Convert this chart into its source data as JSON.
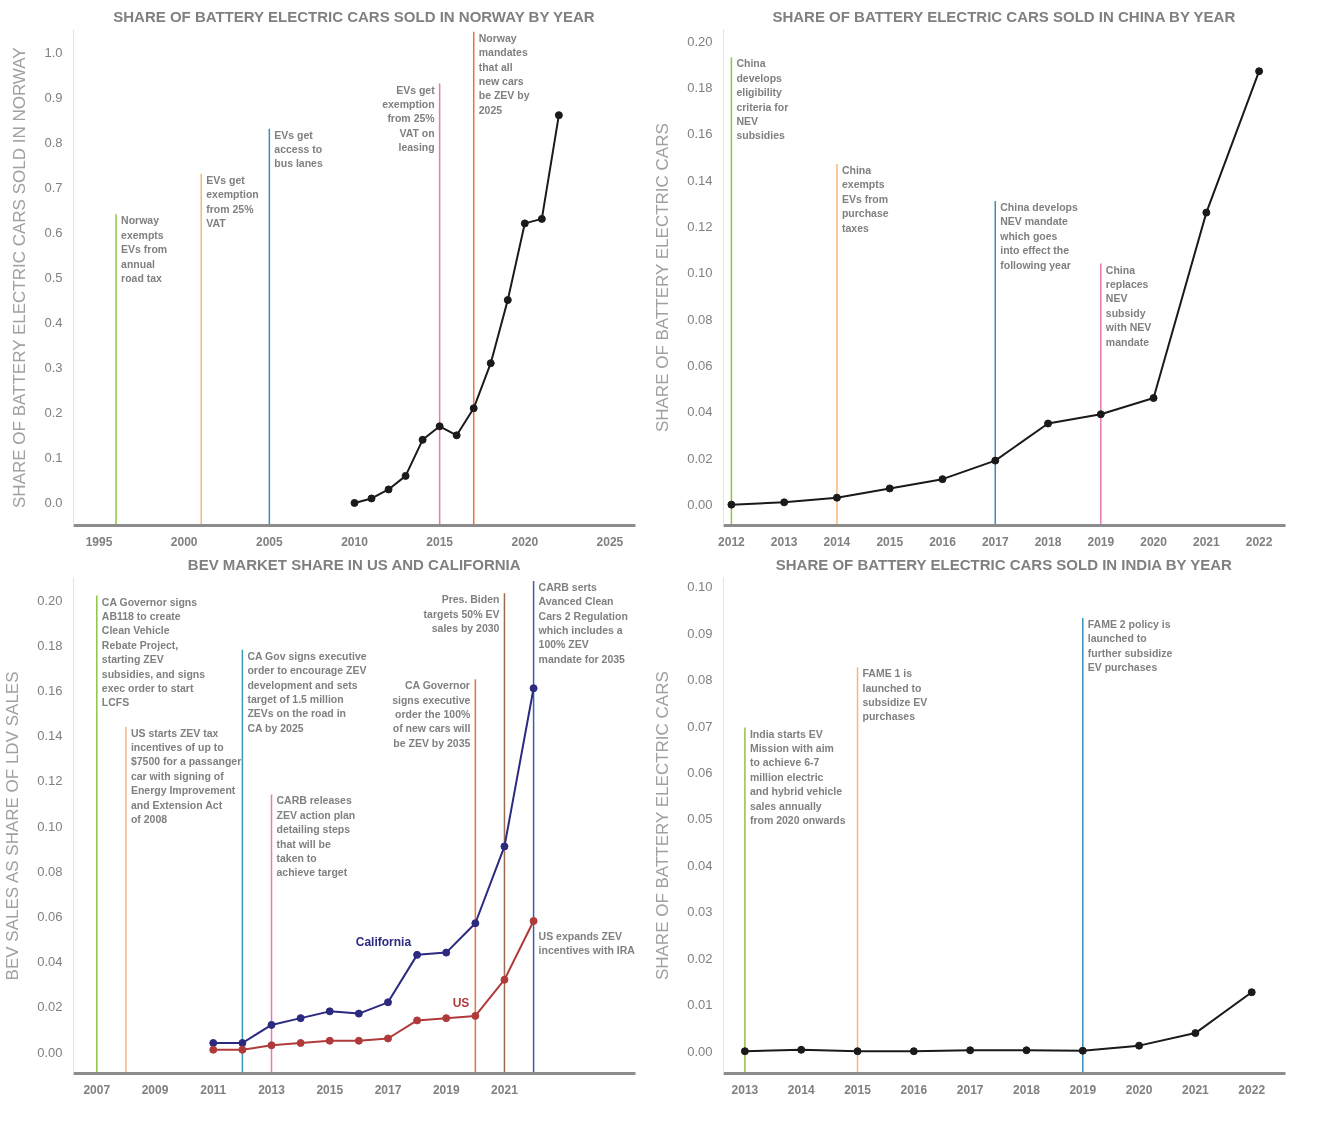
{
  "chart_data": [
    {
      "type": "line",
      "title": "SHARE OF BATTERY ELECTRIC CARS SOLD IN NORWAY BY YEAR",
      "ylabel": "SHARE OF BATTERY ELECTRIC CARS SOLD IN NORWAY",
      "marker": "circle",
      "x": [
        2010,
        2011,
        2012,
        2013,
        2014,
        2015,
        2016,
        2017,
        2018,
        2019,
        2020,
        2021,
        2022
      ],
      "series": [
        {
          "color": "#1a1a1a",
          "values": [
            0.0,
            0.01,
            0.03,
            0.06,
            0.14,
            0.17,
            0.15,
            0.21,
            0.31,
            0.45,
            0.62,
            0.63,
            0.86
          ]
        }
      ],
      "xlim": [
        1993.5,
        2026.5
      ],
      "ylim": [
        -0.05,
        1.05
      ],
      "xticks": [
        1995,
        2000,
        2005,
        2010,
        2015,
        2020,
        2025
      ],
      "yticks": [
        {
          "value": 0,
          "label": "0.0"
        },
        {
          "value": 0.1,
          "label": "0.1"
        },
        {
          "value": 0.2,
          "label": "0.2"
        },
        {
          "value": 0.3,
          "label": "0.3"
        },
        {
          "value": 0.4,
          "label": "0.4"
        },
        {
          "value": 0.5,
          "label": "0.5"
        },
        {
          "value": 0.6,
          "label": "0.6"
        },
        {
          "value": 0.7,
          "label": "0.7"
        },
        {
          "value": 0.8,
          "label": "0.8"
        },
        {
          "value": 0.9,
          "label": "0.9"
        },
        {
          "value": 1.0,
          "label": "1.0"
        }
      ],
      "ref_lines": [
        {
          "axis": "x",
          "value": 1996,
          "color": "#8dc63f"
        },
        {
          "axis": "x",
          "value": 2001,
          "color": "#f5b87a"
        },
        {
          "axis": "x",
          "value": 2005,
          "color": "#3a8fb7"
        },
        {
          "axis": "x",
          "value": 2015,
          "color": "#e879b9"
        },
        {
          "axis": "x",
          "value": 2017,
          "color": "#f26f3a"
        }
      ],
      "annotations": [
        {
          "text": "Norway\nexempts\nEVs from\nannual\nroad tax",
          "x": 1996,
          "y": 0.64
        },
        {
          "text": "EVs get\nexemption\nfrom 25%\nVAT",
          "x": 2001,
          "y": 0.73
        },
        {
          "text": "EVs get\naccess to\nbus lanes",
          "x": 2005,
          "y": 0.83
        },
        {
          "text": "EVs get\nexemption\nfrom 25%\nVAT on\nleasing",
          "x": 2015,
          "y": 0.93
        },
        {
          "text": "Norway\nmandates\nthat all\nnew cars\nbe ZEV by\n2025",
          "x": 2017,
          "y": 1.045
        }
      ]
    },
    {
      "type": "line",
      "title": "SHARE OF BATTERY ELECTRIC CARS SOLD IN CHINA BY YEAR",
      "ylabel": "SHARE OF BATTERY ELECTRIC CARS",
      "marker": "circle",
      "x": [
        2012,
        2013,
        2014,
        2015,
        2016,
        2017,
        2018,
        2019,
        2020,
        2021,
        2022
      ],
      "series": [
        {
          "color": "#1a1a1a",
          "values": [
            0.0,
            0.001,
            0.003,
            0.007,
            0.011,
            0.019,
            0.035,
            0.039,
            0.046,
            0.126,
            0.187
          ]
        }
      ],
      "xlim": [
        2011.85,
        2022.5
      ],
      "ylim": [
        -0.009,
        0.205
      ],
      "xticks": [
        2012,
        2013,
        2014,
        2015,
        2016,
        2017,
        2018,
        2019,
        2020,
        2021,
        2022
      ],
      "yticks": [
        {
          "value": 0,
          "label": "0.00"
        },
        {
          "value": 0.02,
          "label": "0.02"
        },
        {
          "value": 0.04,
          "label": "0.04"
        },
        {
          "value": 0.06,
          "label": "0.06"
        },
        {
          "value": 0.08,
          "label": "0.08"
        },
        {
          "value": 0.1,
          "label": "0.10"
        },
        {
          "value": 0.12,
          "label": "0.12"
        },
        {
          "value": 0.14,
          "label": "0.14"
        },
        {
          "value": 0.16,
          "label": "0.16"
        },
        {
          "value": 0.18,
          "label": "0.18"
        },
        {
          "value": 0.2,
          "label": "0.20"
        }
      ],
      "ref_lines": [
        {
          "axis": "x",
          "value": 2012,
          "color": "#8dc63f"
        },
        {
          "axis": "x",
          "value": 2014,
          "color": "#f5b87a"
        },
        {
          "axis": "x",
          "value": 2017,
          "color": "#3a8fb7"
        },
        {
          "axis": "x",
          "value": 2019,
          "color": "#e879b9"
        }
      ],
      "annotations": [
        {
          "text": "China\ndevelops\neligibility\ncriteria for\nNEV\nsubsidies",
          "x": 2012,
          "y": 0.193
        },
        {
          "text": "China\nexempts\nEVs from\npurchase\ntaxes",
          "x": 2014,
          "y": 0.147
        },
        {
          "text": "China develops\nNEV mandate\nwhich goes\ninto effect the\nfollowing year",
          "x": 2017,
          "y": 0.131
        },
        {
          "text": "China\nreplaces\nNEV\nsubsidy\nwith NEV\nmandate",
          "x": 2019,
          "y": 0.104
        }
      ]
    },
    {
      "type": "line",
      "title": "BEV MARKET SHARE IN US AND CALIFORNIA",
      "ylabel": "BEV SALES AS SHARE OF LDV SALES",
      "marker": "circle",
      "x": [
        2011,
        2012,
        2013,
        2014,
        2015,
        2016,
        2017,
        2018,
        2019,
        2020,
        2021,
        2022
      ],
      "series": [
        {
          "name": "California",
          "color": "#2b2a7f",
          "values": [
            0.004,
            0.004,
            0.012,
            0.015,
            0.018,
            0.017,
            0.022,
            0.043,
            0.044,
            0.057,
            0.091,
            0.161
          ]
        },
        {
          "name": "US",
          "color": "#b03a3a",
          "values": [
            0.001,
            0.001,
            0.003,
            0.004,
            0.005,
            0.005,
            0.006,
            0.014,
            0.015,
            0.016,
            0.032,
            0.058
          ]
        }
      ],
      "xlim": [
        2006.2,
        2025.5
      ],
      "ylim": [
        -0.0095,
        0.21
      ],
      "xticks": [
        2007,
        2009,
        2011,
        2013,
        2015,
        2017,
        2019,
        2021
      ],
      "yticks": [
        {
          "value": 0,
          "label": "0.00"
        },
        {
          "value": 0.02,
          "label": "0.02"
        },
        {
          "value": 0.04,
          "label": "0.04"
        },
        {
          "value": 0.06,
          "label": "0.06"
        },
        {
          "value": 0.08,
          "label": "0.08"
        },
        {
          "value": 0.1,
          "label": "0.10"
        },
        {
          "value": 0.12,
          "label": "0.12"
        },
        {
          "value": 0.14,
          "label": "0.14"
        },
        {
          "value": 0.16,
          "label": "0.16"
        },
        {
          "value": 0.18,
          "label": "0.18"
        },
        {
          "value": 0.2,
          "label": "0.20"
        }
      ],
      "ref_lines": [
        {
          "axis": "x",
          "value": 2007,
          "color": "#8dc63f"
        },
        {
          "axis": "x",
          "value": 2008,
          "color": "#f5b87a"
        },
        {
          "axis": "x",
          "value": 2012,
          "color": "#3a9ab7"
        },
        {
          "axis": "x",
          "value": 2013,
          "color": "#e879b9"
        },
        {
          "axis": "x",
          "value": 2020,
          "color": "#f26f3a"
        },
        {
          "axis": "x",
          "value": 2021,
          "color": "#9b6b4f"
        },
        {
          "axis": "x",
          "value": 2022,
          "color": "#3b5eab"
        }
      ],
      "annotations": [
        {
          "text": "CA Governor signs\nAB118 to create\nClean Vehicle\nRebate Project,\nstarting ZEV\nsubsidies, and signs\nexec order to start\nLCFS",
          "x": 2007,
          "y": 0.202
        },
        {
          "text": "US starts ZEV tax\nincentives of up to\n$7500 for a passanger\ncar with signing of\nEnergy Improvement\nand Extension Act\nof 2008",
          "x": 2008,
          "y": 0.144
        },
        {
          "text": "CA Gov signs executive\norder to encourage ZEV\ndevelopment and sets\ntarget of 1.5 million\nZEVs on the road in\nCA by 2025",
          "x": 2012,
          "y": 0.178
        },
        {
          "text": "CARB releases\nZEV action plan\ndetailing steps\nthat will be\ntaken to\nachieve target",
          "x": 2013,
          "y": 0.114
        },
        {
          "text": "CA Governor\nsigns executive\norder the 100%\nof new cars will\nbe ZEV by 2035",
          "x": 2020,
          "y": 0.165
        },
        {
          "text": "Pres. Biden\ntargets 50% EV\nsales by 2030",
          "x": 2021,
          "y": 0.203
        },
        {
          "text": "CARB serts\nAvanced Clean\nCars 2 Regulation\nwhich includes a\n100% ZEV\nmandate for 2035",
          "x": 2022,
          "y": 0.2085
        },
        {
          "text": "US expands ZEV\nincentives with IRA",
          "x": 2022,
          "y": 0.054
        }
      ]
    },
    {
      "type": "line",
      "title": "SHARE OF BATTERY ELECTRIC CARS SOLD IN INDIA BY YEAR",
      "ylabel": "SHARE OF BATTERY ELECTRIC CARS",
      "marker": "circle",
      "x": [
        2013,
        2014,
        2015,
        2016,
        2017,
        2018,
        2019,
        2020,
        2021,
        2022
      ],
      "series": [
        {
          "color": "#1a1a1a",
          "values": [
            0.0,
            0.0003,
            0.0,
            0.0,
            0.0002,
            0.0002,
            0.0001,
            0.0012,
            0.0039,
            0.0127
          ]
        }
      ],
      "xlim": [
        2012.62,
        2022.6
      ],
      "ylim": [
        -0.0048,
        0.102
      ],
      "xticks": [
        2013,
        2014,
        2015,
        2016,
        2017,
        2018,
        2019,
        2020,
        2021,
        2022
      ],
      "yticks": [
        {
          "value": 0,
          "label": "0.00"
        },
        {
          "value": 0.01,
          "label": "0.01"
        },
        {
          "value": 0.02,
          "label": "0.02"
        },
        {
          "value": 0.03,
          "label": "0.03"
        },
        {
          "value": 0.04,
          "label": "0.04"
        },
        {
          "value": 0.05,
          "label": "0.05"
        },
        {
          "value": 0.06,
          "label": "0.06"
        },
        {
          "value": 0.07,
          "label": "0.07"
        },
        {
          "value": 0.08,
          "label": "0.08"
        },
        {
          "value": 0.09,
          "label": "0.09"
        },
        {
          "value": 0.1,
          "label": "0.10"
        }
      ],
      "ref_lines": [
        {
          "axis": "x",
          "value": 2013,
          "color": "#8dc63f"
        },
        {
          "axis": "x",
          "value": 2015,
          "color": "#f5b87a"
        },
        {
          "axis": "x",
          "value": 2019,
          "color": "#3a8fb7"
        }
      ],
      "annotations": [
        {
          "text": "India starts EV\nMission with aim\nto achieve 6-7\nmillion electric\nand hybrid vehicle\nsales annually\nfrom 2020 onwards",
          "x": 2013,
          "y": 0.0697
        },
        {
          "text": "FAME 1 is\nlaunched to\nsubsidize EV\npurchases",
          "x": 2015,
          "y": 0.0827
        },
        {
          "text": "FAME 2 policy is\nlaunched to\nfurther subsidize\nEV purchases",
          "x": 2019,
          "y": 0.0933
        }
      ]
    }
  ]
}
